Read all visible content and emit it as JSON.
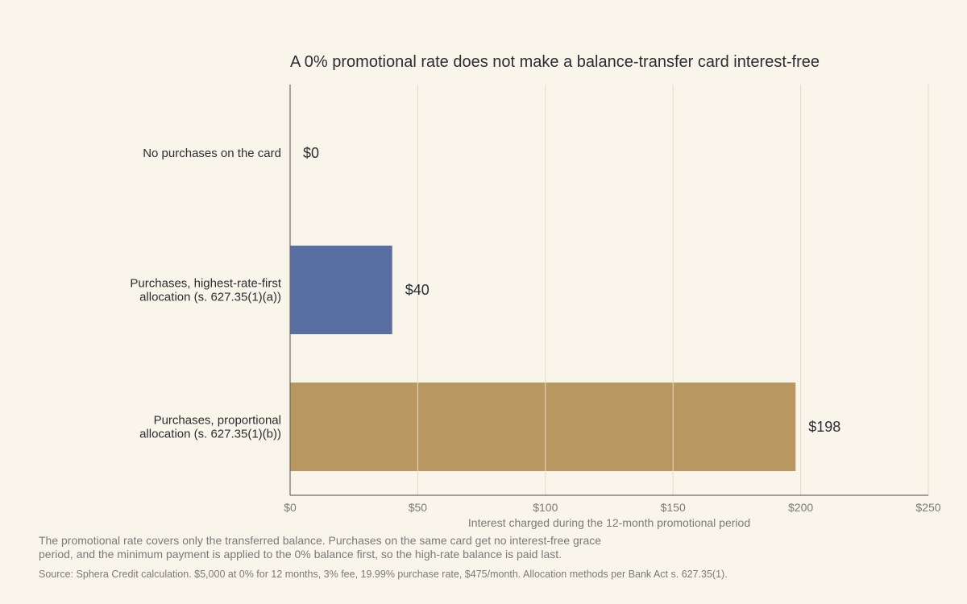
{
  "chart_data": {
    "type": "bar",
    "orientation": "horizontal",
    "title": "A 0% promotional rate does not make a balance-transfer card interest-free",
    "categories": [
      [
        "No purchases on the card"
      ],
      [
        "Purchases, highest-rate-first",
        "allocation (s. 627.35(1)(a))"
      ],
      [
        "Purchases, proportional",
        "allocation (s. 627.35(1)(b))"
      ]
    ],
    "values": [
      0,
      40,
      198
    ],
    "value_labels": [
      "$0",
      "$40",
      "$198"
    ],
    "bar_colors": [
      "#5a6fa1",
      "#5a6fa1",
      "#b99761"
    ],
    "xlabel": "Interest charged during the 12-month promotional period",
    "xlim": [
      0,
      250
    ],
    "xticks": [
      0,
      50,
      100,
      150,
      200,
      250
    ],
    "xtick_labels": [
      "$0",
      "$50",
      "$100",
      "$150",
      "$200",
      "$250"
    ],
    "grid": "vertical",
    "legend": "none"
  },
  "note": "The promotional rate covers only the transferred balance. Purchases on the same card get no interest-free grace period, and the minimum payment is applied to the 0% balance first, so the high-rate balance is paid last.",
  "source": "Source: Sphera Credit calculation. $5,000 at 0% for 12 months, 3% fee, 19.99% purchase rate, $475/month. Allocation methods per Bank Act s. 627.35(1).",
  "colors": {
    "background": "#f9f5ea",
    "gridline": "#e2dcc3",
    "axis": "#6b6b6b"
  }
}
